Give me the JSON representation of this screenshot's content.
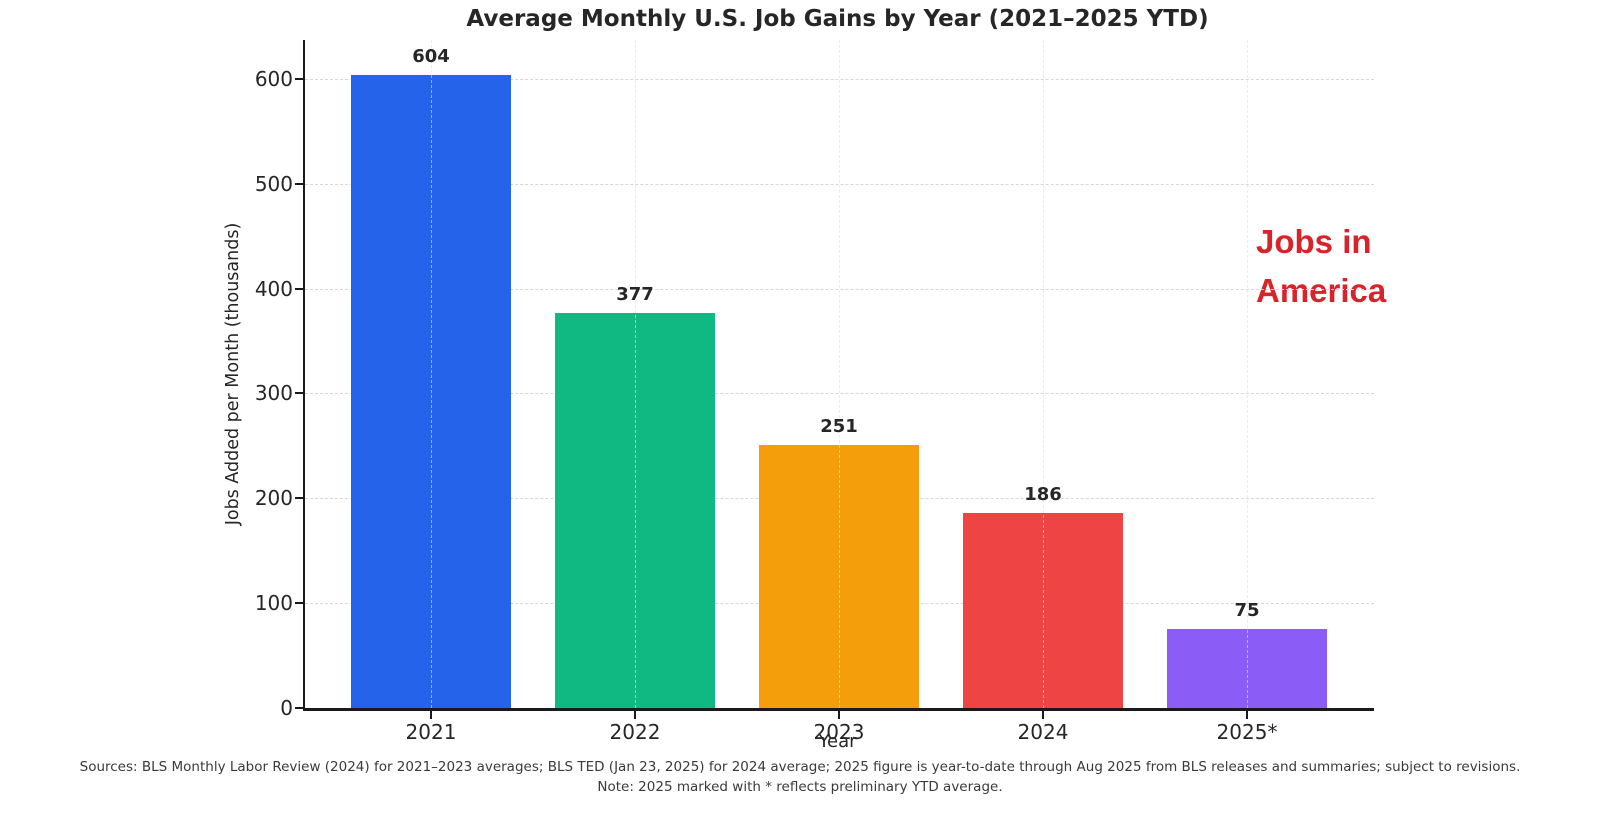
{
  "chart_data": {
    "type": "bar",
    "title": "Average Monthly U.S. Job Gains by Year (2021–2025 YTD)",
    "xlabel": "Year",
    "ylabel": "Jobs Added per Month (thousands)",
    "categories": [
      "2021",
      "2022",
      "2023",
      "2024",
      "2025*"
    ],
    "values": [
      604,
      377,
      251,
      186,
      75
    ],
    "value_labels": [
      "604",
      "377",
      "251",
      "186",
      "75"
    ],
    "bar_colors": [
      "#2563eb",
      "#10b981",
      "#f59e0b",
      "#ef4444",
      "#8b5cf6"
    ],
    "yticks": [
      0,
      100,
      200,
      300,
      400,
      500,
      600
    ],
    "ylim": [
      0,
      637
    ],
    "grid": "dashed both axes",
    "legend_position": "none",
    "annotation": {
      "line1": "Jobs in",
      "line2": "America",
      "color": "#d8232a"
    },
    "footnote_line1": "Sources: BLS Monthly Labor Review (2024) for 2021–2023 averages; BLS TED (Jan 23, 2025) for 2024 average; 2025 figure is year-to-date through Aug 2025 from BLS releases and summaries; subject to revisions.",
    "footnote_line2": "Note: 2025 marked with * reflects preliminary YTD average."
  }
}
